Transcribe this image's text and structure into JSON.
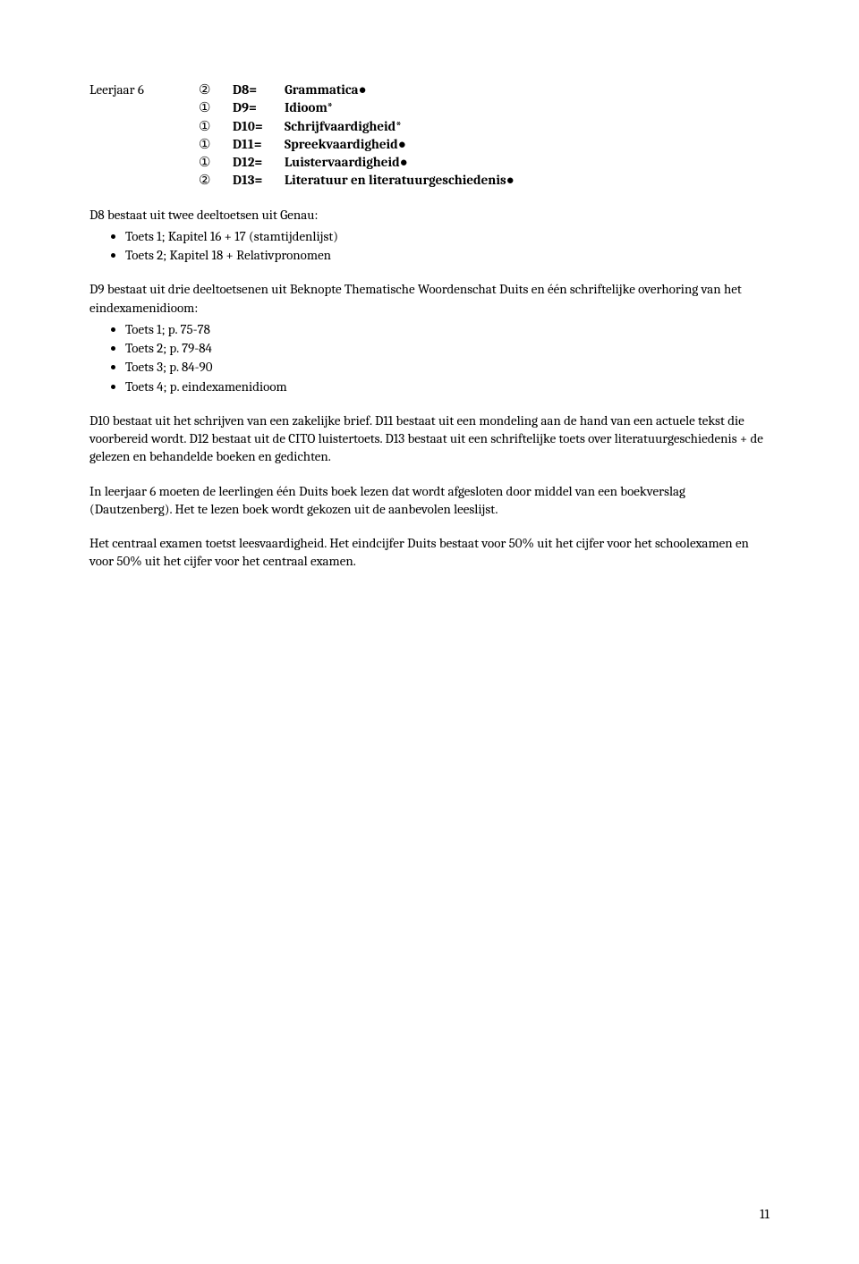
{
  "leerjaar_label": "Leerjaar  6",
  "domains": [
    {
      "circled": "②",
      "code": "D8=",
      "name": "Grammatica●"
    },
    {
      "circled": "①",
      "code": "D9=",
      "name": "Idioom*"
    },
    {
      "circled": "①",
      "code": "D10=",
      "name": "Schrijfvaardigheid*"
    },
    {
      "circled": "①",
      "code": "D11=",
      "name": "Spreekvaardigheid●"
    },
    {
      "circled": "①",
      "code": "D12=",
      "name": "Luistervaardigheid●"
    },
    {
      "circled": "②",
      "code": "D13=",
      "name": "Literatuur en literatuurgeschiedenis●"
    }
  ],
  "d8_intro": "D8 bestaat uit twee deeltoetsen uit Genau:",
  "d8_items": [
    "Toets 1; Kapitel 16 + 17 (stamtijdenlijst)",
    "Toets 2; Kapitel 18 + Relativpronomen"
  ],
  "d9_intro": "D9 bestaat uit drie deeltoetsenen uit Beknopte Thematische Woordenschat Duits en één schriftelijke overhoring van het eindexamenidioom:",
  "d9_items": [
    "Toets 1; p. 75-78",
    "Toets 2; p. 79-84",
    "Toets 3; p. 84-90",
    "Toets 4; p. eindexamenidioom"
  ],
  "para_d10_d13": "D10 bestaat uit het schrijven van een zakelijke brief. D11 bestaat uit een mondeling aan de hand van een actuele tekst die voorbereid wordt. D12 bestaat uit de CITO luistertoets. D13 bestaat uit een schriftelijke toets over literatuurgeschiedenis + de gelezen en behandelde boeken en gedichten.",
  "para_leerjaar6": "In leerjaar 6 moeten de leerlingen één Duits boek lezen dat wordt afgesloten door middel van een boekverslag (Dautzenberg). Het te lezen boek wordt gekozen uit de aanbevolen leeslijst.",
  "para_examen": "Het centraal examen toetst leesvaardigheid. Het eindcijfer Duits bestaat voor 50% uit het cijfer voor het schoolexamen en voor 50% uit het cijfer voor het centraal examen.",
  "page_number": "11"
}
